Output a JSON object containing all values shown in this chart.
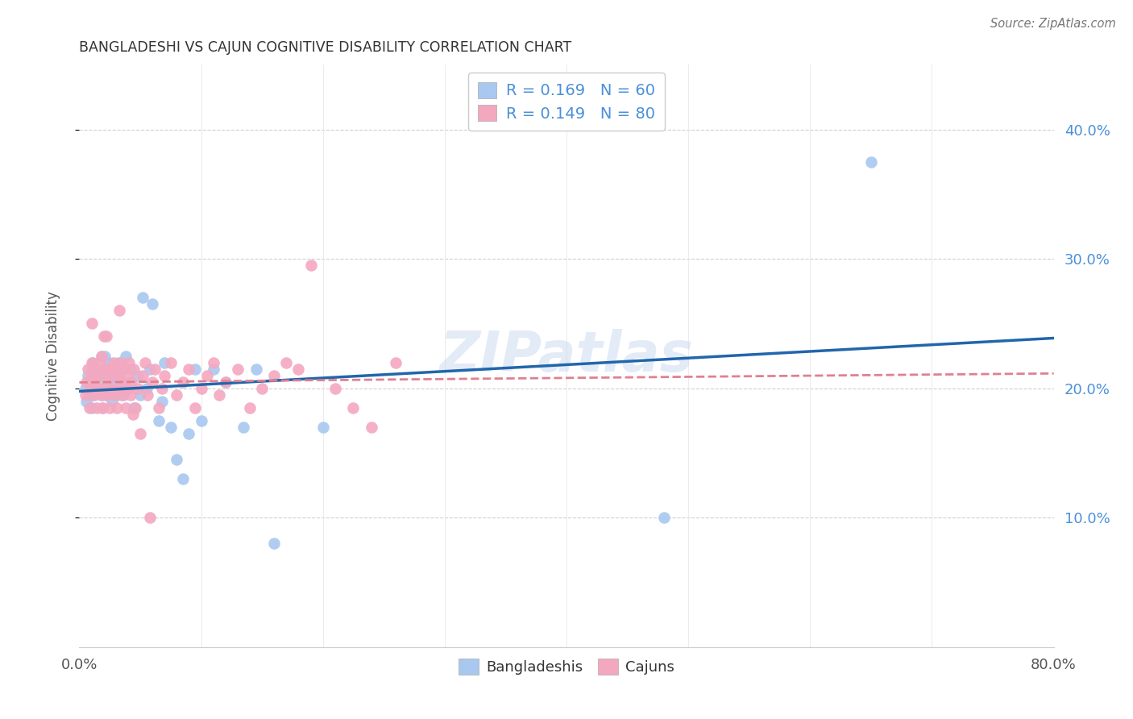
{
  "title": "BANGLADESHI VS CAJUN COGNITIVE DISABILITY CORRELATION CHART",
  "source": "Source: ZipAtlas.com",
  "ylabel": "Cognitive Disability",
  "xlim": [
    0.0,
    0.8
  ],
  "ylim": [
    0.0,
    0.45
  ],
  "yticks_right": [
    0.1,
    0.2,
    0.3,
    0.4
  ],
  "ytick_labels_right": [
    "10.0%",
    "20.0%",
    "30.0%",
    "40.0%"
  ],
  "watermark": "ZIPatlas",
  "blue_color": "#a8c8f0",
  "pink_color": "#f4a8c0",
  "blue_line_color": "#2166ac",
  "pink_line_color": "#e08090",
  "title_color": "#333333",
  "tick_color_right": "#4a90d9",
  "legend_text_color": "#4a90d9",
  "grid_color": "#d0d0d0",
  "bangladeshis_x": [
    0.005,
    0.006,
    0.007,
    0.008,
    0.009,
    0.01,
    0.01,
    0.011,
    0.012,
    0.013,
    0.015,
    0.016,
    0.017,
    0.018,
    0.018,
    0.019,
    0.02,
    0.02,
    0.021,
    0.022,
    0.023,
    0.024,
    0.025,
    0.026,
    0.027,
    0.028,
    0.03,
    0.031,
    0.032,
    0.033,
    0.034,
    0.035,
    0.036,
    0.038,
    0.04,
    0.042,
    0.045,
    0.048,
    0.05,
    0.052,
    0.055,
    0.058,
    0.06,
    0.065,
    0.068,
    0.07,
    0.075,
    0.08,
    0.085,
    0.09,
    0.095,
    0.1,
    0.11,
    0.12,
    0.135,
    0.145,
    0.16,
    0.2,
    0.48,
    0.65
  ],
  "bangladeshis_y": [
    0.2,
    0.19,
    0.21,
    0.195,
    0.205,
    0.215,
    0.185,
    0.22,
    0.195,
    0.21,
    0.2,
    0.215,
    0.205,
    0.195,
    0.225,
    0.185,
    0.2,
    0.215,
    0.225,
    0.195,
    0.21,
    0.22,
    0.2,
    0.215,
    0.19,
    0.205,
    0.21,
    0.195,
    0.22,
    0.2,
    0.215,
    0.205,
    0.195,
    0.225,
    0.2,
    0.215,
    0.185,
    0.21,
    0.195,
    0.27,
    0.2,
    0.215,
    0.265,
    0.175,
    0.19,
    0.22,
    0.17,
    0.145,
    0.13,
    0.165,
    0.215,
    0.175,
    0.215,
    0.205,
    0.17,
    0.215,
    0.08,
    0.17,
    0.1,
    0.375
  ],
  "cajuns_x": [
    0.005,
    0.006,
    0.007,
    0.008,
    0.009,
    0.01,
    0.01,
    0.011,
    0.012,
    0.013,
    0.014,
    0.015,
    0.016,
    0.017,
    0.018,
    0.018,
    0.019,
    0.02,
    0.02,
    0.021,
    0.022,
    0.023,
    0.024,
    0.025,
    0.026,
    0.027,
    0.028,
    0.029,
    0.03,
    0.031,
    0.032,
    0.033,
    0.034,
    0.035,
    0.036,
    0.037,
    0.038,
    0.039,
    0.04,
    0.041,
    0.042,
    0.043,
    0.045,
    0.046,
    0.048,
    0.05,
    0.052,
    0.054,
    0.056,
    0.058,
    0.06,
    0.062,
    0.065,
    0.068,
    0.07,
    0.075,
    0.08,
    0.085,
    0.09,
    0.095,
    0.1,
    0.105,
    0.11,
    0.115,
    0.12,
    0.13,
    0.14,
    0.15,
    0.16,
    0.17,
    0.18,
    0.19,
    0.21,
    0.225,
    0.24,
    0.26,
    0.01,
    0.022,
    0.033,
    0.044
  ],
  "cajuns_y": [
    0.195,
    0.205,
    0.215,
    0.185,
    0.2,
    0.21,
    0.22,
    0.195,
    0.205,
    0.215,
    0.185,
    0.2,
    0.21,
    0.22,
    0.195,
    0.225,
    0.185,
    0.2,
    0.24,
    0.215,
    0.195,
    0.205,
    0.215,
    0.185,
    0.2,
    0.21,
    0.22,
    0.195,
    0.215,
    0.185,
    0.2,
    0.21,
    0.22,
    0.195,
    0.205,
    0.215,
    0.185,
    0.2,
    0.21,
    0.22,
    0.195,
    0.205,
    0.215,
    0.185,
    0.2,
    0.165,
    0.21,
    0.22,
    0.195,
    0.1,
    0.205,
    0.215,
    0.185,
    0.2,
    0.21,
    0.22,
    0.195,
    0.205,
    0.215,
    0.185,
    0.2,
    0.21,
    0.22,
    0.195,
    0.205,
    0.215,
    0.185,
    0.2,
    0.21,
    0.22,
    0.215,
    0.295,
    0.2,
    0.185,
    0.17,
    0.22,
    0.25,
    0.24,
    0.26,
    0.18
  ]
}
